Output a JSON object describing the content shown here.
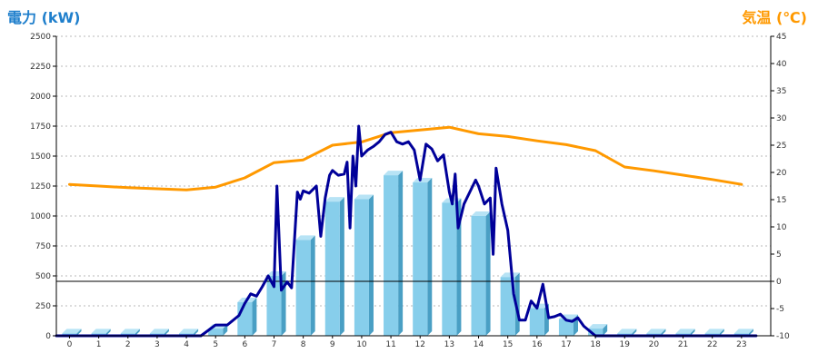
{
  "chart_data": {
    "type": "bar",
    "left_axis_title": "電力 (kW)",
    "right_axis_title": "気温 (℃)",
    "categories": [
      "0",
      "1",
      "2",
      "3",
      "4",
      "5",
      "6",
      "7",
      "8",
      "9",
      "10",
      "11",
      "12",
      "13",
      "14",
      "15",
      "16",
      "17",
      "18",
      "19",
      "20",
      "21",
      "22",
      "23"
    ],
    "y_left_ticks": [
      "0",
      "250",
      "500",
      "750",
      "1000",
      "1250",
      "1500",
      "1750",
      "2000",
      "2250",
      "2500"
    ],
    "y_right_ticks": [
      "-10",
      "-5",
      "0",
      "5",
      "10",
      "15",
      "20",
      "25",
      "30",
      "35",
      "40",
      "45"
    ],
    "y_left_range": [
      0,
      2500
    ],
    "y_right_range": [
      -10,
      45
    ],
    "grid": true,
    "series": [
      {
        "kind": "bar",
        "axis": "left",
        "color": "#87ceeb",
        "values": [
          20,
          20,
          20,
          20,
          20,
          60,
          280,
          500,
          800,
          1120,
          1140,
          1340,
          1280,
          1110,
          1000,
          490,
          230,
          140,
          60,
          20,
          20,
          20,
          20,
          20
        ]
      },
      {
        "kind": "line",
        "axis": "right",
        "color": "#ff9900",
        "values": [
          17.8,
          17.5,
          17.2,
          17.0,
          16.8,
          17.3,
          19.0,
          21.8,
          22.3,
          25.0,
          25.6,
          27.3,
          27.8,
          28.3,
          27.1,
          26.6,
          25.8,
          25.1,
          24.0,
          21.0,
          20.3,
          19.5,
          18.7,
          17.8
        ]
      },
      {
        "kind": "line",
        "axis": "left",
        "color": "#000099",
        "x": [
          -0.45,
          0,
          1,
          2,
          3,
          4,
          4.5,
          5,
          5.4,
          5.8,
          6,
          6.2,
          6.4,
          6.6,
          6.8,
          7,
          7.1,
          7.25,
          7.45,
          7.6,
          7.8,
          7.9,
          8,
          8.2,
          8.45,
          8.6,
          8.75,
          8.9,
          9,
          9.2,
          9.4,
          9.5,
          9.6,
          9.7,
          9.8,
          9.9,
          10,
          10.2,
          10.4,
          10.6,
          10.8,
          11,
          11.2,
          11.4,
          11.6,
          11.8,
          12,
          12.2,
          12.4,
          12.6,
          12.8,
          13,
          13.1,
          13.2,
          13.3,
          13.5,
          13.7,
          13.9,
          14,
          14.2,
          14.4,
          14.5,
          14.6,
          14.8,
          15,
          15.2,
          15.4,
          15.6,
          15.8,
          16,
          16.2,
          16.4,
          16.6,
          16.8,
          17,
          17.2,
          17.4,
          17.6,
          18,
          18.2,
          18.4,
          19,
          20,
          21,
          22,
          23,
          23.5
        ],
        "values": [
          0,
          0,
          0,
          0,
          0,
          0,
          0,
          90,
          90,
          170,
          270,
          350,
          330,
          410,
          500,
          410,
          1250,
          380,
          450,
          400,
          1200,
          1140,
          1210,
          1190,
          1250,
          830,
          1150,
          1340,
          1380,
          1340,
          1350,
          1450,
          900,
          1500,
          1250,
          1750,
          1500,
          1550,
          1580,
          1620,
          1680,
          1700,
          1620,
          1600,
          1620,
          1550,
          1300,
          1600,
          1560,
          1460,
          1510,
          1200,
          1100,
          1350,
          900,
          1100,
          1200,
          1300,
          1250,
          1100,
          1150,
          680,
          1400,
          1100,
          880,
          350,
          130,
          130,
          290,
          230,
          430,
          150,
          160,
          180,
          130,
          120,
          150,
          80,
          0,
          0,
          0,
          0,
          0,
          0,
          0,
          0,
          0
        ]
      }
    ]
  }
}
